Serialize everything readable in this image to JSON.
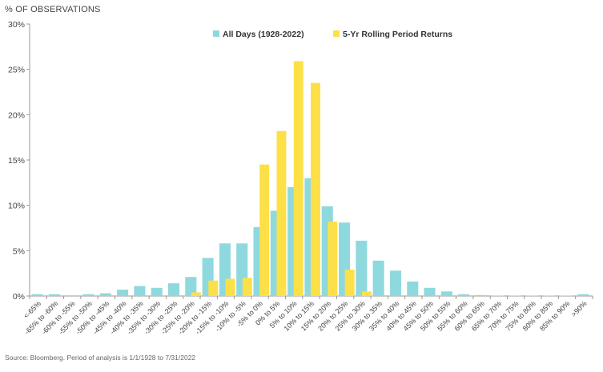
{
  "chart_data": {
    "type": "bar",
    "ylabel": "% OF OBSERVATIONS",
    "ylim": [
      0,
      30
    ],
    "yticks": [
      0,
      5,
      10,
      15,
      20,
      25,
      30
    ],
    "ytick_suffix": "%",
    "grid": false,
    "legend_placement": "top-center",
    "categories": [
      "<-65%",
      "-65% to -60%",
      "-60% to -55%",
      "-55% to -50%",
      "-50% to -45%",
      "-45% to -40%",
      "-40% to -35%",
      "-35% to -30%",
      "-30% to -25%",
      "-25% to -20%",
      "-20% to -15%",
      "-15% to -10%",
      "-10% to -5%",
      "-5% to 0%",
      "0% to 5%",
      "5% to 10%",
      "10% to 15%",
      "15% to 20%",
      "20% to 25%",
      "25% to 30%",
      "30% to 35%",
      "35% to 40%",
      "40% to 45%",
      "45% to 50%",
      "50% to 55%",
      "55% to 60%",
      "60% to 65%",
      "65% to 70%",
      "70% to 75%",
      "75% to 80%",
      "80% to 85%",
      "85% to 90%",
      ">90%"
    ],
    "series": [
      {
        "name": "All Days (1928-2022)",
        "color": "#8ed9de",
        "values": [
          0.2,
          0.2,
          0.0,
          0.2,
          0.3,
          0.7,
          1.1,
          0.9,
          1.4,
          2.1,
          4.2,
          5.8,
          5.8,
          7.6,
          9.4,
          12.0,
          13.0,
          9.9,
          8.1,
          6.1,
          3.9,
          2.8,
          1.6,
          0.9,
          0.5,
          0.2,
          0.1,
          0.05,
          0.05,
          0.05,
          0.05,
          0.05,
          0.2
        ]
      },
      {
        "name": "5-Yr Rolling Period Returns",
        "color": "#fde047",
        "values": [
          0,
          0,
          0,
          0,
          0,
          0,
          0,
          0,
          0,
          0.4,
          1.7,
          1.9,
          2.0,
          14.5,
          18.2,
          25.9,
          23.5,
          8.2,
          2.9,
          0.5,
          0,
          0,
          0,
          0,
          0,
          0,
          0,
          0,
          0,
          0,
          0,
          0,
          0
        ]
      }
    ]
  },
  "source": "Source: Bloomberg. Period of analysis is 1/1/1928 to 7/31/2022"
}
